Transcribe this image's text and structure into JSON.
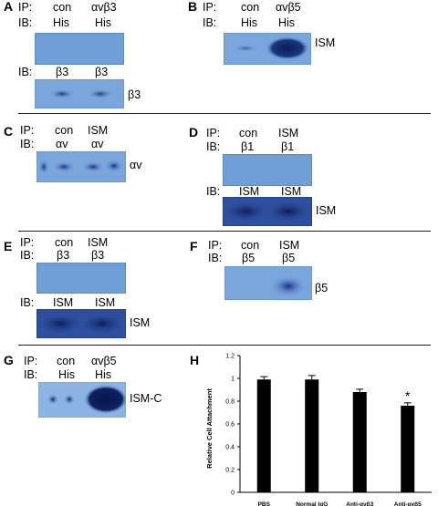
{
  "panels": {
    "A": {
      "letter": "A",
      "ip": "IP:",
      "ib": "IB:",
      "ip_lanes": [
        "con",
        "αvβ3"
      ],
      "ib_lanes": [
        "His",
        "His"
      ],
      "ib2": "IB:",
      "ib2_lanes": [
        "β3",
        "β3"
      ],
      "band_label": "β3"
    },
    "B": {
      "letter": "B",
      "ip": "IP:",
      "ib": "IB:",
      "ip_lanes": [
        "con",
        "αvβ5"
      ],
      "ib_lanes": [
        "His",
        "His"
      ],
      "band_label": "ISM"
    },
    "C": {
      "letter": "C",
      "ip": "IP:",
      "ib": "IB:",
      "ip_lanes": [
        "con",
        "ISM"
      ],
      "ib_lanes": [
        "αv",
        "αv"
      ],
      "band_label": "αv"
    },
    "D": {
      "letter": "D",
      "ip": "IP:",
      "ib": "IB:",
      "ip_lanes": [
        "con",
        "ISM"
      ],
      "ib_lanes": [
        "β1",
        "β1"
      ],
      "ib2": "IB:",
      "ib2_lanes": [
        "ISM",
        "ISM"
      ],
      "band_label": "ISM"
    },
    "E": {
      "letter": "E",
      "ip": "IP:",
      "ib": "IB:",
      "ip_lanes": [
        "con",
        "ISM"
      ],
      "ib_lanes": [
        "β3",
        "β3"
      ],
      "ib2": "IB:",
      "ib2_lanes": [
        "ISM",
        "ISM"
      ],
      "band_label": "ISM"
    },
    "F": {
      "letter": "F",
      "ip": "IP:",
      "ib": "IB:",
      "ip_lanes": [
        "con",
        "ISM"
      ],
      "ib_lanes": [
        "β5",
        "β5"
      ],
      "band_label": "β5"
    },
    "G": {
      "letter": "G",
      "ip": "IP:",
      "ib": "IB:",
      "ip_lanes": [
        "con",
        "αvβ5"
      ],
      "ib_lanes": [
        "His",
        "His"
      ],
      "band_label": "ISM-C"
    },
    "H": {
      "letter": "H"
    }
  },
  "chart_data": {
    "type": "bar",
    "categories": [
      "PBS",
      "Normal IgG",
      "Anti-αvβ3",
      "Anti-αvβ5"
    ],
    "values": [
      0.99,
      0.99,
      0.88,
      0.76
    ],
    "errors": [
      0.025,
      0.035,
      0.025,
      0.025
    ],
    "ylabel": "Relative Cell Attachment",
    "ylim": [
      0,
      1.2
    ],
    "yticks": [
      "0",
      "0.2",
      "0.4",
      "0.6",
      "0.8",
      "1",
      "1.2"
    ],
    "annotations": [
      {
        "category": "Anti-αvβ5",
        "text": "*"
      }
    ],
    "bar_color": "#000000",
    "grid": false
  }
}
